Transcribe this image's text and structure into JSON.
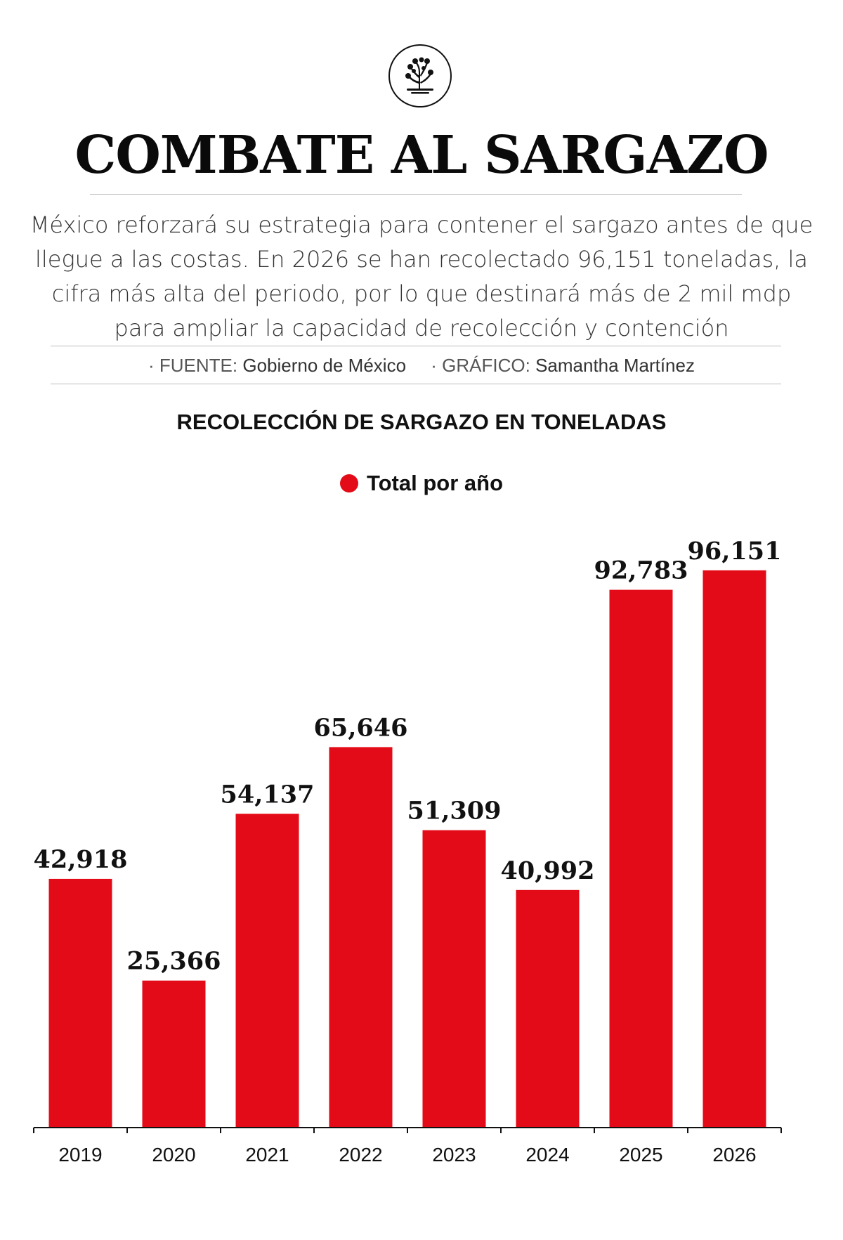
{
  "header": {
    "logo_icon": "sargassum-seaweed-icon",
    "title": "COMBATE AL SARGAZO",
    "description": "México reforzará su estrategia para contener el sargazo antes de que llegue a las costas. En 2026 se han recolectado 96,151 toneladas, la cifra más alta del periodo, por lo que destinará más de 2 mil mdp para ampliar la capacidad de recolección y contención",
    "source_label": "· FUENTE:",
    "source_value": "Gobierno de México",
    "graphic_label": "· GRÁFICO:",
    "graphic_value": "Samantha Martínez"
  },
  "colors": {
    "bar": "#e30b17",
    "text": "#111111",
    "rule": "#bdbdbd"
  },
  "chart_data": {
    "type": "bar",
    "title": "RECOLECCIÓN DE SARGAZO EN TONELADAS",
    "xlabel": "",
    "ylabel": "",
    "categories": [
      "2019",
      "2020",
      "2021",
      "2022",
      "2023",
      "2024",
      "2025",
      "2026"
    ],
    "series": [
      {
        "name": "Total por año",
        "values": [
          42918,
          25366,
          54137,
          65646,
          51309,
          40992,
          92783,
          96151
        ]
      }
    ],
    "data_labels": [
      "42,918",
      "25,366",
      "54,137",
      "65,646",
      "51,309",
      "40,992",
      "92,783",
      "96,151"
    ],
    "ylim": [
      0,
      100000
    ],
    "grid": false,
    "legend_position": "top-center"
  }
}
